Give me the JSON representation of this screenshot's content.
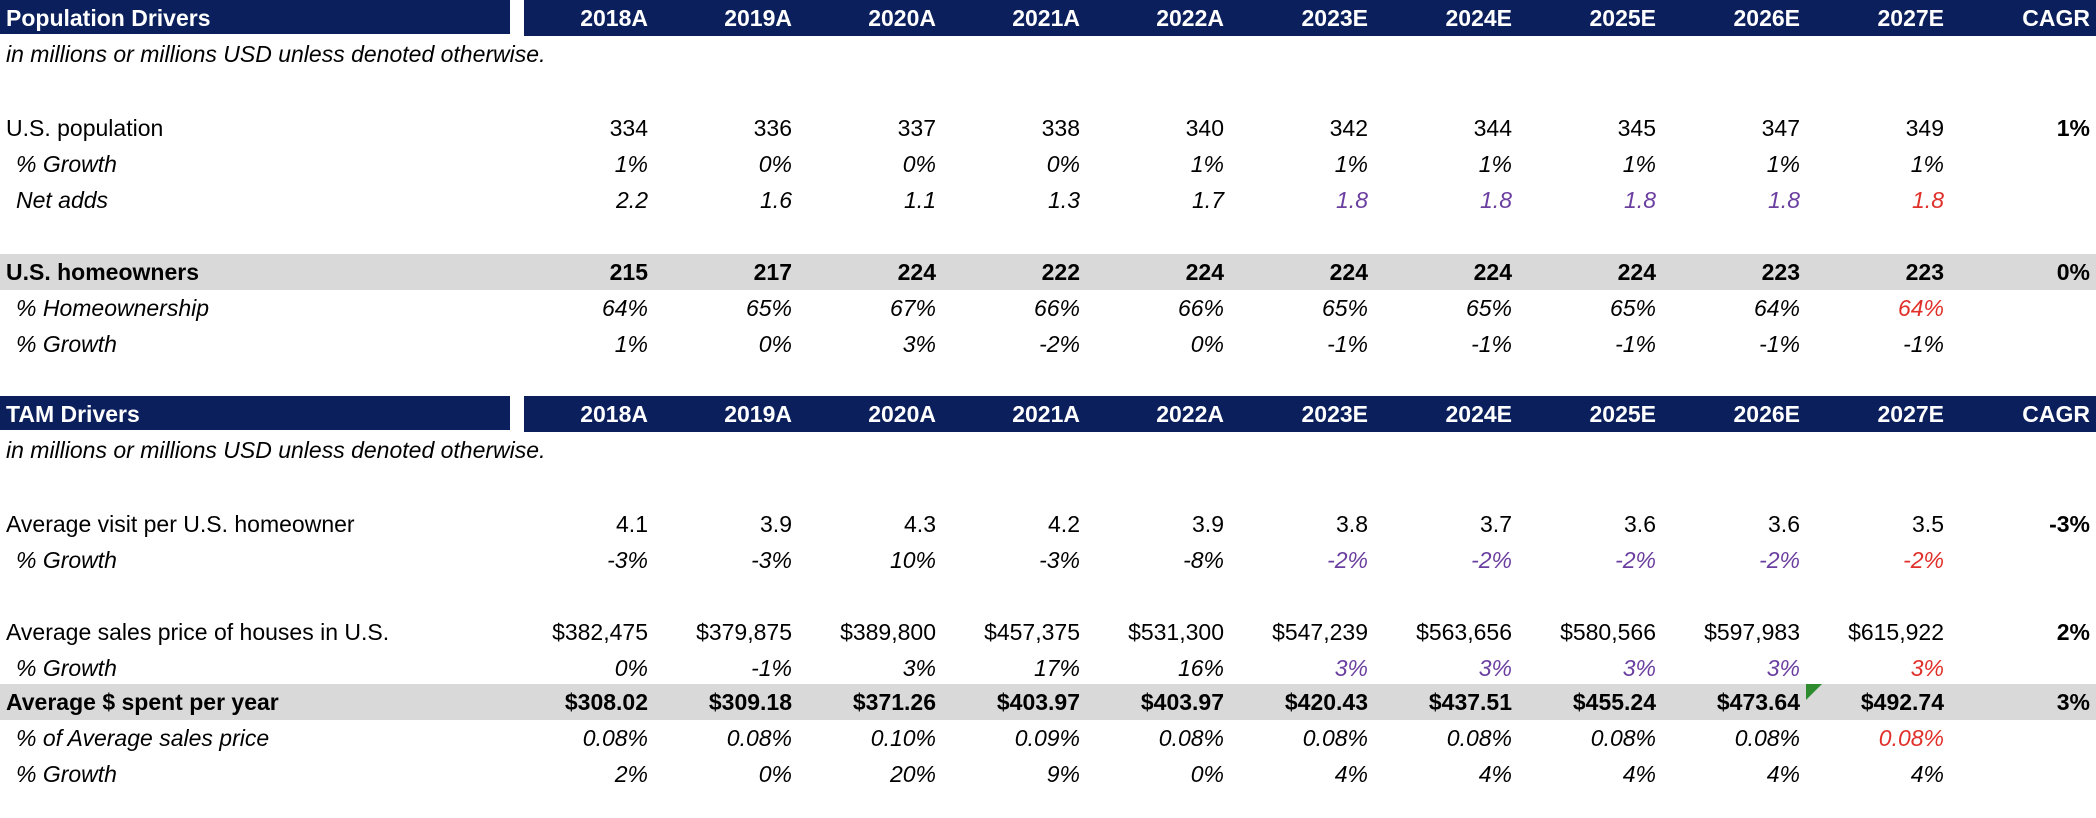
{
  "sections": [
    {
      "title": "Population Drivers",
      "years": [
        "2018A",
        "2019A",
        "2020A",
        "2021A",
        "2022A",
        "2023E",
        "2024E",
        "2025E",
        "2026E",
        "2027E"
      ],
      "cagr_label": "CAGR",
      "note": "in millions or millions USD unless denoted otherwise.",
      "rows": [
        {
          "label": "U.S. population",
          "values": [
            "334",
            "336",
            "337",
            "338",
            "340",
            "342",
            "344",
            "345",
            "347",
            "349"
          ],
          "cagr": "1%"
        },
        {
          "label": "% Growth",
          "values": [
            "1%",
            "0%",
            "0%",
            "0%",
            "1%",
            "1%",
            "1%",
            "1%",
            "1%",
            "1%"
          ]
        },
        {
          "label": "Net adds",
          "values": [
            "2.2",
            "1.6",
            "1.1",
            "1.3",
            "1.7",
            "1.8",
            "1.8",
            "1.8",
            "1.8",
            "1.8"
          ]
        },
        {
          "label": "U.S. homeowners",
          "values": [
            "215",
            "217",
            "224",
            "222",
            "224",
            "224",
            "224",
            "224",
            "223",
            "223"
          ],
          "cagr": "0%"
        },
        {
          "label": "% Homeownership",
          "values": [
            "64%",
            "65%",
            "67%",
            "66%",
            "66%",
            "65%",
            "65%",
            "65%",
            "64%",
            "64%"
          ]
        },
        {
          "label": "% Growth",
          "values": [
            "1%",
            "0%",
            "3%",
            "-2%",
            "0%",
            "-1%",
            "-1%",
            "-1%",
            "-1%",
            "-1%"
          ]
        }
      ]
    },
    {
      "title": "TAM Drivers",
      "years": [
        "2018A",
        "2019A",
        "2020A",
        "2021A",
        "2022A",
        "2023E",
        "2024E",
        "2025E",
        "2026E",
        "2027E"
      ],
      "cagr_label": "CAGR",
      "note": "in millions or millions USD unless denoted otherwise.",
      "rows": [
        {
          "label": "Average visit per U.S. homeowner",
          "values": [
            "4.1",
            "3.9",
            "4.3",
            "4.2",
            "3.9",
            "3.8",
            "3.7",
            "3.6",
            "3.6",
            "3.5"
          ],
          "cagr": "-3%"
        },
        {
          "label": "% Growth",
          "values": [
            "-3%",
            "-3%",
            "10%",
            "-3%",
            "-8%",
            "-2%",
            "-2%",
            "-2%",
            "-2%",
            "-2%"
          ]
        },
        {
          "label": "Average sales price of houses in U.S.",
          "values": [
            "$382,475",
            "$379,875",
            "$389,800",
            "$457,375",
            "$531,300",
            "$547,239",
            "$563,656",
            "$580,566",
            "$597,983",
            "$615,922"
          ],
          "cagr": "2%"
        },
        {
          "label": "% Growth",
          "values": [
            "0%",
            "-1%",
            "3%",
            "17%",
            "16%",
            "3%",
            "3%",
            "3%",
            "3%",
            "3%"
          ]
        },
        {
          "label": "Average $ spent per year",
          "values": [
            "$308.02",
            "$309.18",
            "$371.26",
            "$403.97",
            "$403.97",
            "$420.43",
            "$437.51",
            "$455.24",
            "$473.64",
            "$492.74"
          ],
          "cagr": "3%"
        },
        {
          "label": "% of Average sales price",
          "values": [
            "0.08%",
            "0.08%",
            "0.10%",
            "0.09%",
            "0.08%",
            "0.08%",
            "0.08%",
            "0.08%",
            "0.08%",
            "0.08%"
          ]
        },
        {
          "label": "% Growth",
          "values": [
            "2%",
            "0%",
            "20%",
            "9%",
            "0%",
            "4%",
            "4%",
            "4%",
            "4%",
            "4%"
          ]
        }
      ]
    }
  ],
  "colors": {
    "header_bg": "#0b1f5c",
    "header_text": "#ffffff",
    "highlight_row_bg": "#d9d9d9",
    "estimate_input": "#6b3fa0",
    "estimate_highlight": "#e0302a",
    "comment_marker": "#2e8b2e"
  }
}
